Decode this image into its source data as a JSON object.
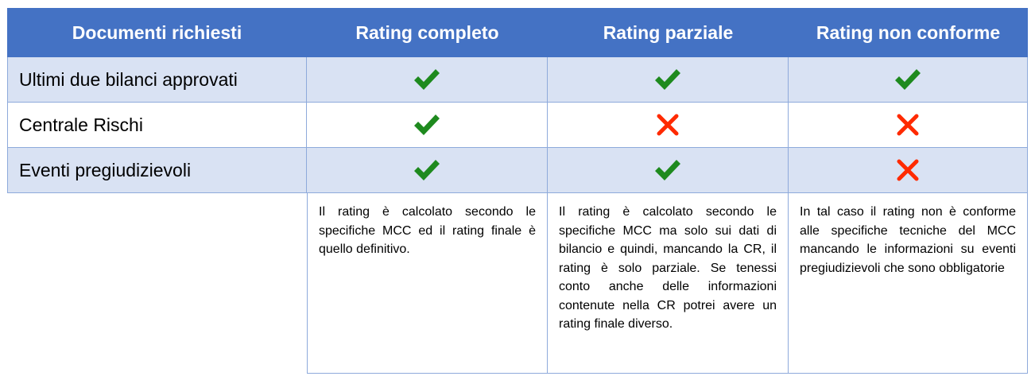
{
  "table": {
    "headers": [
      "Documenti richiesti",
      "Rating completo",
      "Rating parziale",
      "Rating non conforme"
    ],
    "rows": [
      {
        "label": "Ultimi due bilanci approvati",
        "marks": [
          "check",
          "check",
          "check"
        ]
      },
      {
        "label": "Centrale Rischi",
        "marks": [
          "check",
          "cross",
          "cross"
        ]
      },
      {
        "label": "Eventi pregiudizievoli",
        "marks": [
          "check",
          "check",
          "cross"
        ]
      }
    ],
    "notes": [
      "Il rating è calcolato secondo le specifiche MCC ed il rating finale è quello definitivo.",
      "Il rating è calcolato secondo le specifiche MCC ma solo sui dati di bilancio e quindi, mancando la CR, il rating è solo parziale. Se tenessi conto anche delle informazioni contenute nella CR potrei avere un rating finale diverso.",
      "In tal caso il rating non è conforme alle specifiche tecniche del MCC mancando le informazioni su eventi pregiudizievoli che sono obbligatorie"
    ]
  },
  "colors": {
    "header_bg": "#4472c4",
    "row_shade": "#d9e2f3",
    "border": "#8eaadb",
    "check": "#1e8a1e",
    "cross": "#ff2a00"
  }
}
